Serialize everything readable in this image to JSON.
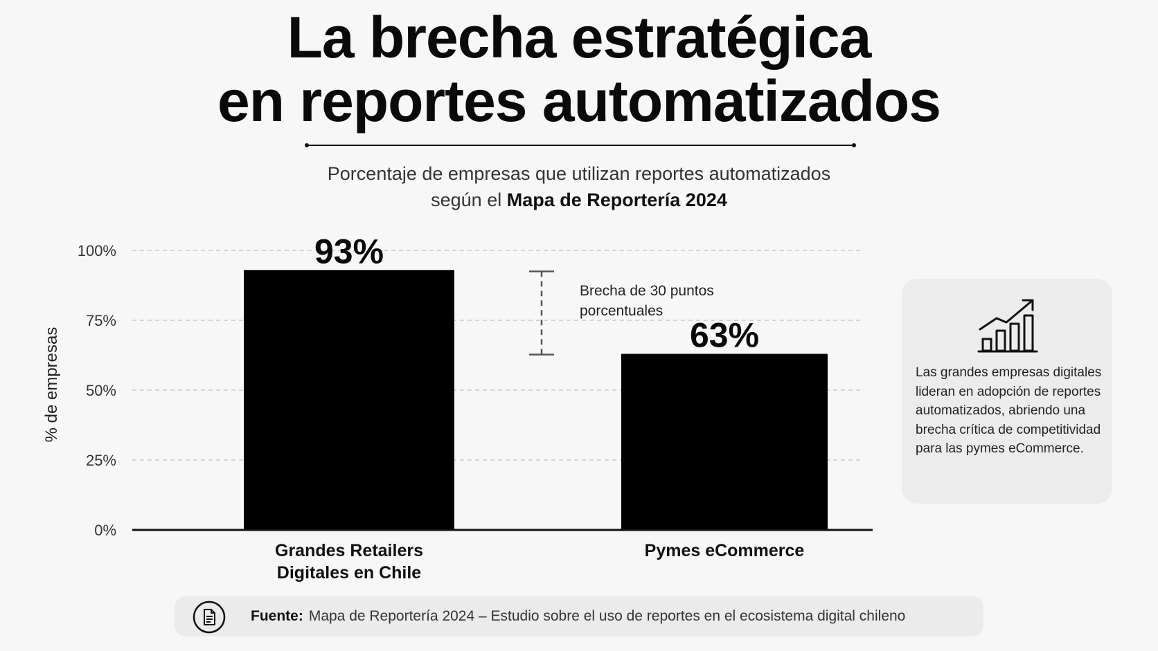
{
  "header": {
    "title_line1": "La brecha estratégica",
    "title_line2": "en reportes automatizados",
    "subtitle_line1": "Porcentaje de empresas que utilizan reportes automatizados",
    "subtitle_line2_prefix": "según el",
    "subtitle_line2_bold": "Mapa de Reportería 2024"
  },
  "chart_data": {
    "type": "bar",
    "categories": [
      "Grandes Retailers Digitales en Chile",
      "Pymes eCommerce"
    ],
    "category_lines": [
      [
        "Grandes Retailers",
        "Digitales en Chile"
      ],
      [
        "Pymes eCommerce"
      ]
    ],
    "values": [
      93,
      63
    ],
    "data_labels": [
      "93%",
      "63%"
    ],
    "ylabel": "% de empresas",
    "ylim": [
      0,
      100
    ],
    "yticks": [
      0,
      25,
      50,
      75,
      100
    ],
    "ytick_labels": [
      "0%",
      "25%",
      "50%",
      "75%",
      "100%"
    ],
    "grid": true,
    "bar_color": "#000000",
    "annotation": {
      "text_lines": [
        "Brecha de 30 puntos",
        "porcentuales"
      ],
      "from_value": 93,
      "to_value": 63
    }
  },
  "note": {
    "icon": "growth-chart-icon",
    "text": "Las grandes empresas digitales lideran en adopción de reportes automatizados, abriendo una brecha crítica de competitividad para las pymes eCommerce."
  },
  "source": {
    "icon": "document-icon",
    "label": "Fuente:",
    "text": "Mapa de Reportería 2024 – Estudio sobre el uso de reportes en el ecosistema digital chileno"
  }
}
